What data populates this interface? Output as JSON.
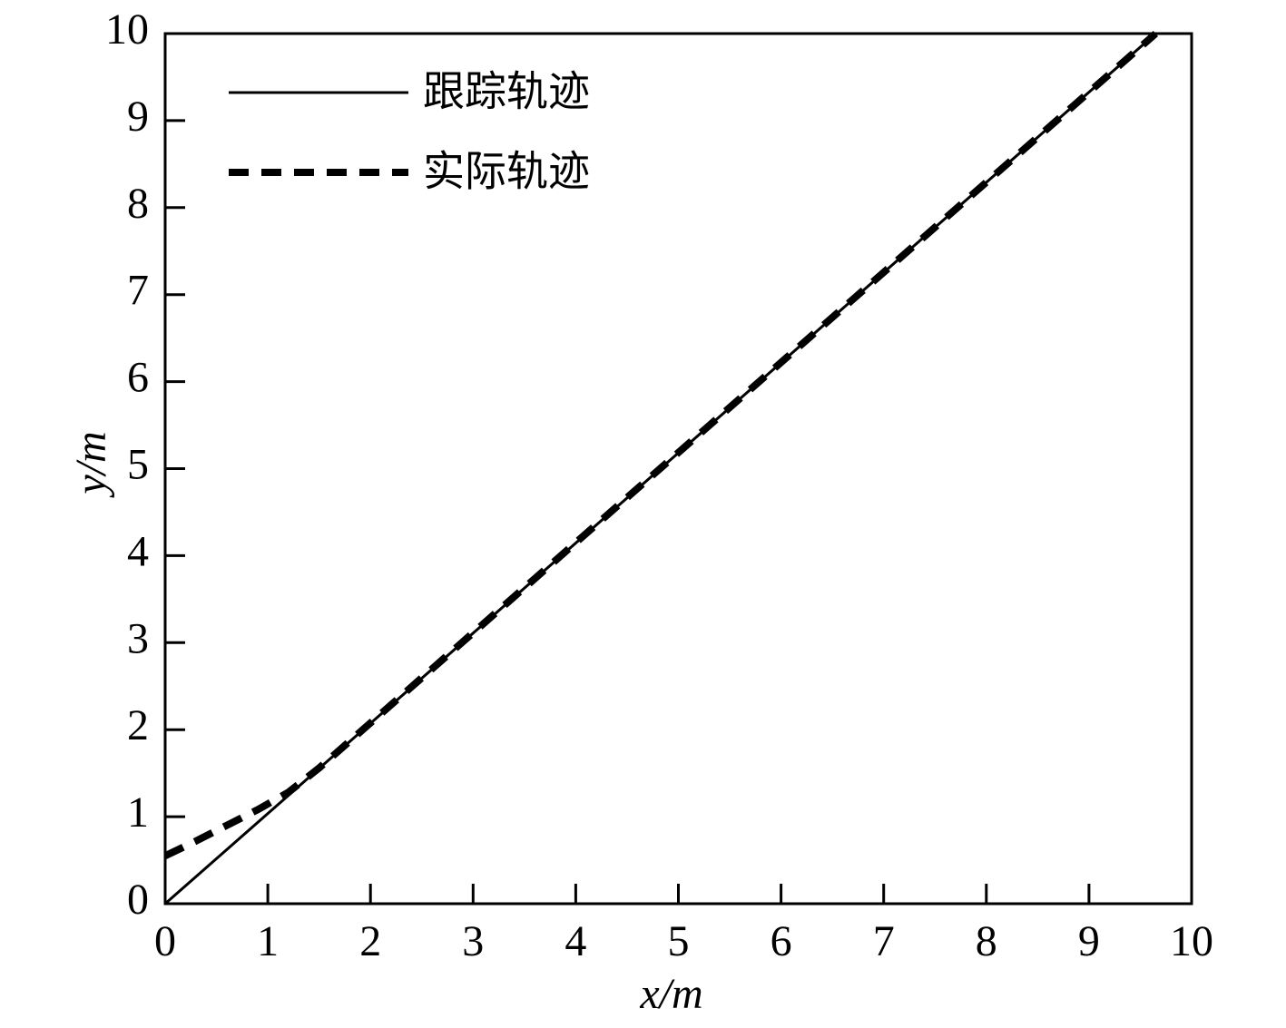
{
  "chart_data": {
    "type": "line",
    "xlabel": "x/m",
    "ylabel": "y/m",
    "xlim": [
      0,
      10
    ],
    "ylim": [
      0,
      10
    ],
    "xticks": [
      0,
      1,
      2,
      3,
      4,
      5,
      6,
      7,
      8,
      9,
      10
    ],
    "yticks": [
      0,
      1,
      2,
      3,
      4,
      5,
      6,
      7,
      8,
      9,
      10
    ],
    "grid": false,
    "legend": "upper left",
    "series": [
      {
        "name": "跟踪轨迹",
        "color": "#000000",
        "style": "solid",
        "x": [
          0,
          9.65
        ],
        "y": [
          0,
          10
        ]
      },
      {
        "name": "实际轨迹",
        "color": "#000000",
        "style": "dashed",
        "x": [
          0,
          0.3,
          0.6,
          0.9,
          1.2,
          1.5,
          9.65
        ],
        "y": [
          0.55,
          0.72,
          0.9,
          1.08,
          1.28,
          1.56,
          10
        ]
      }
    ]
  }
}
